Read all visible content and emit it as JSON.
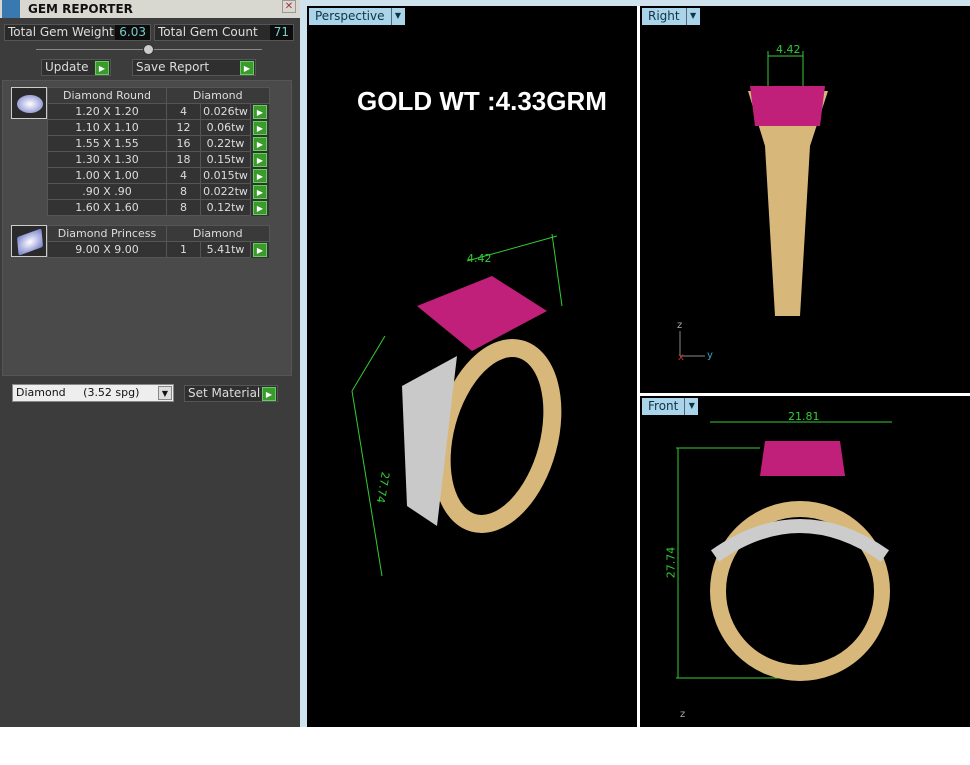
{
  "panel": {
    "title": "GEM REPORTER",
    "total_weight_label": "Total Gem Weight",
    "total_weight": "6.03",
    "total_count_label": "Total Gem Count",
    "total_count": "71",
    "update": "Update",
    "save_report": "Save Report",
    "groups": [
      {
        "shape": "Diamond Round",
        "material": "Diamond",
        "rows": [
          [
            "1.20 X 1.20",
            "4",
            "0.026tw"
          ],
          [
            "1.10 X 1.10",
            "12",
            "0.06tw"
          ],
          [
            "1.55 X 1.55",
            "16",
            "0.22tw"
          ],
          [
            "1.30 X 1.30",
            "18",
            "0.15tw"
          ],
          [
            "1.00 X 1.00",
            "4",
            "0.015tw"
          ],
          [
            ".90 X .90",
            "8",
            "0.022tw"
          ],
          [
            "1.60 X 1.60",
            "8",
            "0.12tw"
          ]
        ]
      },
      {
        "shape": "Diamond Princess",
        "material": "Diamond",
        "rows": [
          [
            "9.00 X 9.00",
            "1",
            "5.41tw"
          ]
        ]
      }
    ],
    "material_select": "Diamond     (3.52 spg)",
    "set_material": "Set Material"
  },
  "viewports": {
    "perspective": {
      "label": "Perspective",
      "overlay": "GOLD WT :4.33GRM",
      "dims": [
        "4.42",
        "27.74"
      ]
    },
    "right": {
      "label": "Right",
      "dims": [
        "4.42"
      ],
      "axes": [
        "z",
        "x",
        "y"
      ]
    },
    "front": {
      "label": "Front",
      "dims": [
        "21.81",
        "27.74"
      ],
      "axes": [
        "z"
      ]
    }
  },
  "colors": {
    "panel": "#3c3c3c",
    "accent": "#a9d4ea",
    "go": "#3a9a2a",
    "dimension": "#33cc33",
    "gold": "#d8b77a",
    "gem": "#c0207a"
  }
}
